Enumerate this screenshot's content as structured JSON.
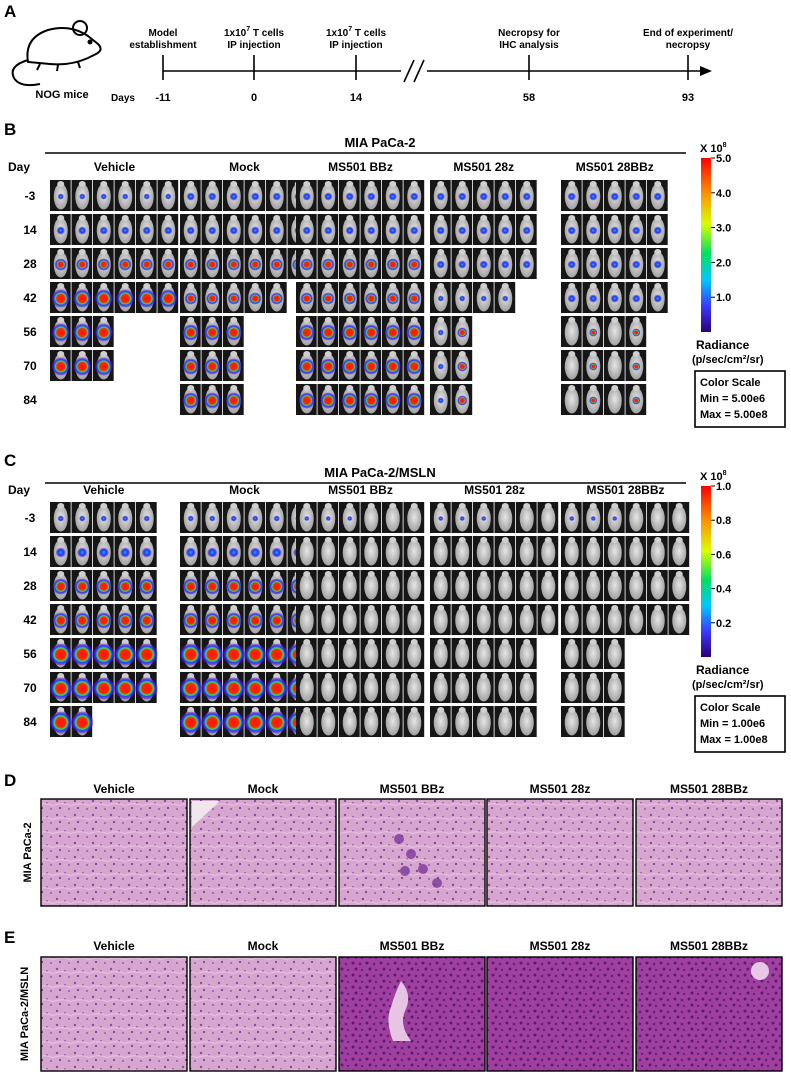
{
  "panel_labels": {
    "a": "A",
    "b": "B",
    "c": "C",
    "d": "D",
    "e": "E"
  },
  "timeline": {
    "animal": "NOG mice",
    "axis_label": "Days",
    "events": [
      {
        "day": "-11",
        "label_lines": [
          "Model",
          "establishment"
        ],
        "sup": ""
      },
      {
        "day": "0",
        "label_lines": [
          "1x10",
          "IP injection"
        ],
        "sup": "7",
        "suffix": " T cells"
      },
      {
        "day": "14",
        "label_lines": [
          "1x10",
          "IP injection"
        ],
        "sup": "7",
        "suffix": " T cells"
      },
      {
        "day": "58",
        "label_lines": [
          "Necropsy for",
          "IHC analysis"
        ],
        "sup": ""
      },
      {
        "day": "93",
        "label_lines": [
          "End of experiment/",
          "necropsy"
        ],
        "sup": ""
      }
    ]
  },
  "imaging_panels": [
    {
      "title": "MIA PaCa-2",
      "day_header": "Day",
      "days": [
        "-3",
        "14",
        "28",
        "42",
        "56",
        "70",
        "84"
      ],
      "groups": [
        {
          "name": "Vehicle",
          "cols": 6,
          "rows_count": [
            6,
            6,
            6,
            6,
            3,
            3,
            0
          ]
        },
        {
          "name": "Mock",
          "cols": 6,
          "rows_count": [
            6,
            6,
            6,
            5,
            3,
            3,
            3
          ]
        },
        {
          "name": "MS501 BBz",
          "cols": 6,
          "rows_count": [
            6,
            6,
            6,
            6,
            6,
            6,
            6
          ]
        },
        {
          "name": "MS501 28z",
          "cols": 5,
          "rows_count": [
            5,
            5,
            5,
            4,
            2,
            2,
            2
          ]
        },
        {
          "name": "MS501 28BBz",
          "cols": 5,
          "rows_count": [
            5,
            5,
            5,
            5,
            4,
            4,
            4
          ]
        }
      ],
      "scale": {
        "multiplier": "X 10",
        "exp": "8",
        "ticks": [
          "5.0",
          "4.0",
          "3.0",
          "2.0",
          "1.0"
        ],
        "radiance_lines": [
          "Radiance",
          "(p/sec/cm²/sr)"
        ],
        "box_lines": [
          "Color Scale",
          "Min = 5.00e6",
          "Max = 5.00e8"
        ]
      }
    },
    {
      "title": "MIA PaCa-2/MSLN",
      "day_header": "Day",
      "days": [
        "-3",
        "14",
        "28",
        "42",
        "56",
        "70",
        "84"
      ],
      "groups": [
        {
          "name": "Vehicle",
          "cols": 5,
          "rows_count": [
            5,
            5,
            5,
            5,
            5,
            5,
            2
          ]
        },
        {
          "name": "Mock",
          "cols": 6,
          "rows_count": [
            6,
            6,
            6,
            6,
            6,
            6,
            6
          ]
        },
        {
          "name": "MS501 BBz",
          "cols": 6,
          "rows_count": [
            6,
            6,
            6,
            6,
            6,
            6,
            6
          ]
        },
        {
          "name": "MS501 28z",
          "cols": 6,
          "rows_count": [
            6,
            6,
            6,
            6,
            5,
            5,
            5
          ]
        },
        {
          "name": "MS501 28BBz",
          "cols": 6,
          "rows_count": [
            6,
            6,
            6,
            6,
            3,
            3,
            3
          ]
        }
      ],
      "scale": {
        "multiplier": "X 10",
        "exp": "8",
        "ticks": [
          "1.0",
          "0.8",
          "0.6",
          "0.4",
          "0.2"
        ],
        "radiance_lines": [
          "Radiance",
          "(p/sec/cm²/sr)"
        ],
        "box_lines": [
          "Color Scale",
          "Min = 1.00e6",
          "Max = 1.00e8"
        ]
      }
    }
  ],
  "histology_panels": [
    {
      "row_label": "MIA PaCa-2",
      "groups": [
        "Vehicle",
        "Mock",
        "MS501 BBz",
        "MS501 28z",
        "MS501 28BBz"
      ]
    },
    {
      "row_label": "MIA PaCa-2/MSLN",
      "groups": [
        "Vehicle",
        "Mock",
        "MS501 BBz",
        "MS501 28z",
        "MS501 28BBz"
      ]
    }
  ]
}
